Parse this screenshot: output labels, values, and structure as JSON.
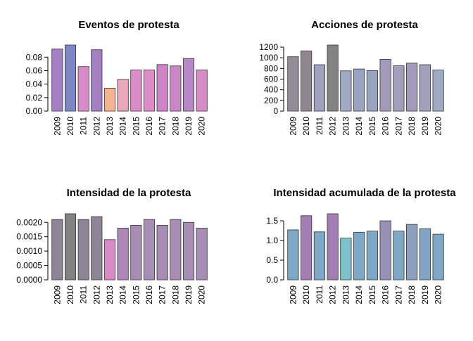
{
  "chart_data": [
    {
      "type": "bar",
      "title": "Eventos de protesta",
      "categories": [
        "2009",
        "2010",
        "2011",
        "2012",
        "2013",
        "2014",
        "2015",
        "2016",
        "2017",
        "2018",
        "2019",
        "2020"
      ],
      "values": [
        0.092,
        0.098,
        0.066,
        0.091,
        0.034,
        0.047,
        0.061,
        0.061,
        0.069,
        0.067,
        0.078,
        0.061
      ],
      "colors": [
        "#a47ec6",
        "#7f88c6",
        "#d68cc6",
        "#a47ec6",
        "#f3b58f",
        "#e9a8bb",
        "#de8cc8",
        "#de8cc8",
        "#cc86c8",
        "#cc86c8",
        "#b887c7",
        "#d48bc6"
      ],
      "yticks": [
        0.0,
        0.02,
        0.04,
        0.06,
        0.08
      ],
      "ytick_labels": [
        "0.00",
        "0.02",
        "0.04",
        "0.06",
        "0.08"
      ],
      "ylim": [
        0,
        0.098
      ]
    },
    {
      "type": "bar",
      "title": "Acciones de protesta",
      "categories": [
        "2009",
        "2010",
        "2011",
        "2012",
        "2013",
        "2014",
        "2015",
        "2016",
        "2017",
        "2018",
        "2019",
        "2020"
      ],
      "values": [
        1020,
        1130,
        870,
        1240,
        755,
        790,
        760,
        970,
        850,
        900,
        870,
        770
      ],
      "colors": [
        "#958c99",
        "#8f868f",
        "#a0a2bd",
        "#838383",
        "#a2abc4",
        "#98a4c0",
        "#98a4c0",
        "#a29ab8",
        "#a0a0bc",
        "#a29ab8",
        "#a0a0bc",
        "#a2abc4"
      ],
      "yticks": [
        0,
        200,
        400,
        600,
        800,
        1000,
        1200
      ],
      "ytick_labels": [
        "0",
        "200",
        "400",
        "600",
        "800",
        "1000",
        "1200"
      ],
      "ylim": [
        0,
        1240
      ]
    },
    {
      "type": "bar",
      "title": "Intensidad de la protesta",
      "categories": [
        "2009",
        "2010",
        "2011",
        "2012",
        "2013",
        "2014",
        "2015",
        "2016",
        "2017",
        "2018",
        "2019",
        "2020"
      ],
      "values": [
        0.0021,
        0.0023,
        0.0021,
        0.0022,
        0.0014,
        0.0018,
        0.0019,
        0.0021,
        0.0019,
        0.0021,
        0.002,
        0.0018
      ],
      "colors": [
        "#8d8597",
        "#828282",
        "#8d8597",
        "#8d8597",
        "#d98ac6",
        "#ad88b8",
        "#a88eb4",
        "#a88eb4",
        "#a88eb4",
        "#a88eb4",
        "#a88eb4",
        "#a88eb4"
      ],
      "yticks": [
        0.0,
        0.0005,
        0.001,
        0.0015,
        0.002
      ],
      "ytick_labels": [
        "0.0000",
        "0.0005",
        "0.0010",
        "0.0015",
        "0.0020"
      ],
      "ylim": [
        0,
        0.0023
      ]
    },
    {
      "type": "bar",
      "title": "Intensidad acumulada de la protesta",
      "categories": [
        "2009",
        "2010",
        "2011",
        "2012",
        "2013",
        "2014",
        "2015",
        "2016",
        "2017",
        "2018",
        "2019",
        "2020"
      ],
      "values": [
        1.27,
        1.63,
        1.22,
        1.68,
        1.06,
        1.21,
        1.24,
        1.5,
        1.24,
        1.41,
        1.3,
        1.16
      ],
      "colors": [
        "#7ea8c6",
        "#a27eb4",
        "#7ea8c6",
        "#a27eb4",
        "#80c2cc",
        "#7ea8c6",
        "#7ea8c6",
        "#9990b8",
        "#7ea8c6",
        "#8ca0c0",
        "#84a4c4",
        "#7ea8c6"
      ],
      "yticks": [
        0.0,
        0.5,
        1.0,
        1.5
      ],
      "ytick_labels": [
        "0.0",
        "0.5",
        "1.0",
        "1.5"
      ],
      "ylim": [
        0,
        1.68
      ]
    }
  ]
}
